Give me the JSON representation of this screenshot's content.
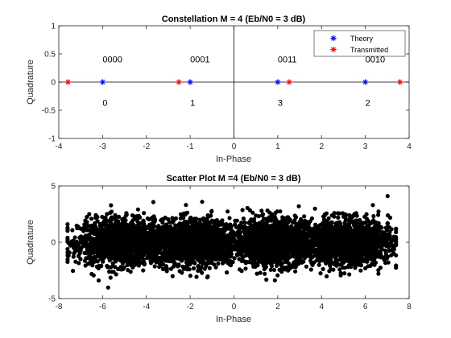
{
  "chart_data": [
    {
      "type": "scatter",
      "title": "Constellation M = 4 (Eb/N0 = 3 dB)",
      "xlabel": "In-Phase",
      "ylabel": "Quadrature",
      "xlim": [
        -4,
        4
      ],
      "ylim": [
        -1,
        1
      ],
      "xticks": [
        "-4",
        "-3",
        "-2",
        "-1",
        "0",
        "1",
        "2",
        "3",
        "4"
      ],
      "yticks": [
        "1",
        "0.5",
        "0",
        "-0.5",
        "-1"
      ],
      "legend_position": "top-right",
      "series": [
        {
          "name": "Theory",
          "color": "#0000ff",
          "marker": "asterisk",
          "x": [
            -3,
            -1,
            1,
            3
          ],
          "y": [
            0,
            0,
            0,
            0
          ]
        },
        {
          "name": "Transmitted",
          "color": "#ff0000",
          "marker": "asterisk",
          "x": [
            -3.79,
            -1.26,
            1.26,
            3.79
          ],
          "y": [
            0,
            0,
            0,
            0
          ]
        }
      ],
      "annotations": [
        {
          "text": "0000",
          "x": -3,
          "y": 0.35
        },
        {
          "text": "0001",
          "x": -1,
          "y": 0.35
        },
        {
          "text": "0011",
          "x": 1,
          "y": 0.35
        },
        {
          "text": "0010",
          "x": 3,
          "y": 0.35
        },
        {
          "text": "0",
          "x": -3,
          "y": -0.42
        },
        {
          "text": "1",
          "x": -1,
          "y": -0.42
        },
        {
          "text": "3",
          "x": 1,
          "y": -0.42
        },
        {
          "text": "2",
          "x": 3,
          "y": -0.42
        }
      ],
      "reference_lines": {
        "x0": true,
        "y0": true
      }
    },
    {
      "type": "scatter",
      "title": "Scatter Plot M =4 (Eb/N0 = 3 dB)",
      "xlabel": "In-Phase",
      "ylabel": "Quadrature",
      "xlim": [
        -8,
        8
      ],
      "ylim": [
        -5,
        5
      ],
      "xticks": [
        "-8",
        "-6",
        "-4",
        "-2",
        "0",
        "2",
        "4",
        "6",
        "8"
      ],
      "yticks": [
        "5",
        "0",
        "-5"
      ],
      "series": [
        {
          "color": "#000000",
          "marker": "filled-circle",
          "cluster_centers": [
            -5.2,
            -1.8,
            1.8,
            5.2
          ],
          "cluster_spread_x": 0.95,
          "cluster_spread_y": 1.0,
          "x_extent": [
            -7.6,
            7.4
          ],
          "y_extent": [
            -4.6,
            4.1
          ]
        }
      ]
    }
  ]
}
